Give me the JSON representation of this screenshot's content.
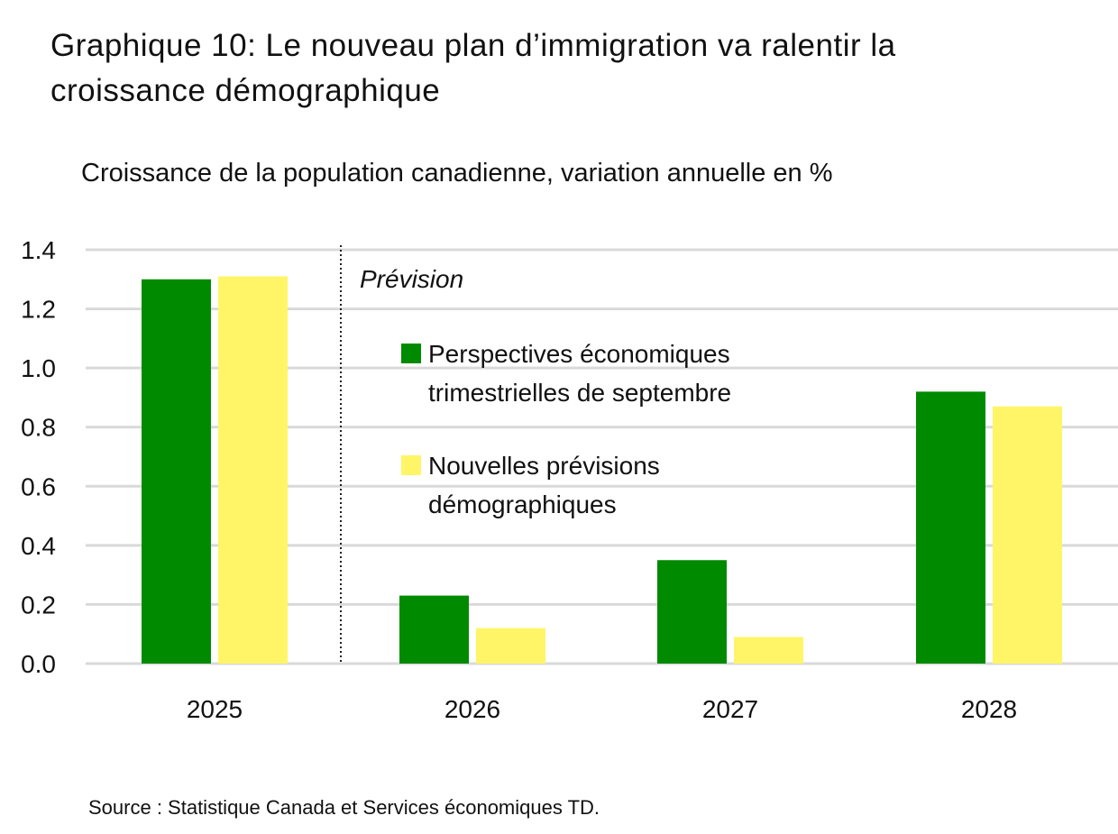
{
  "title": "Graphique 10: Le nouveau plan d’immigration va ralentir la croissance démographique",
  "source": "Source : Statistique Canada et Services économiques TD.",
  "chart_data": {
    "type": "bar",
    "title": "Graphique 10: Le nouveau plan d’immigration va ralentir la croissance démographique",
    "ylabel": "Croissance de la population canadienne, variation annuelle en %",
    "xlabel": "",
    "categories": [
      "2025",
      "2026",
      "2027",
      "2028"
    ],
    "series": [
      {
        "name": "Perspectives économiques trimestrielles de septembre",
        "color": "#008a00",
        "values": [
          1.3,
          0.23,
          0.35,
          0.92
        ]
      },
      {
        "name": "Nouvelles prévisions démographiques",
        "color": "#fff566",
        "values": [
          1.31,
          0.12,
          0.09,
          0.87
        ]
      }
    ],
    "ylim": [
      0,
      1.4
    ],
    "yticks": [
      "0.0",
      "0.2",
      "0.4",
      "0.6",
      "0.8",
      "1.0",
      "1.2",
      "1.4"
    ],
    "grid": true,
    "legend": "center",
    "annotation": "Prévision",
    "forecast_divider_after": "2025"
  }
}
